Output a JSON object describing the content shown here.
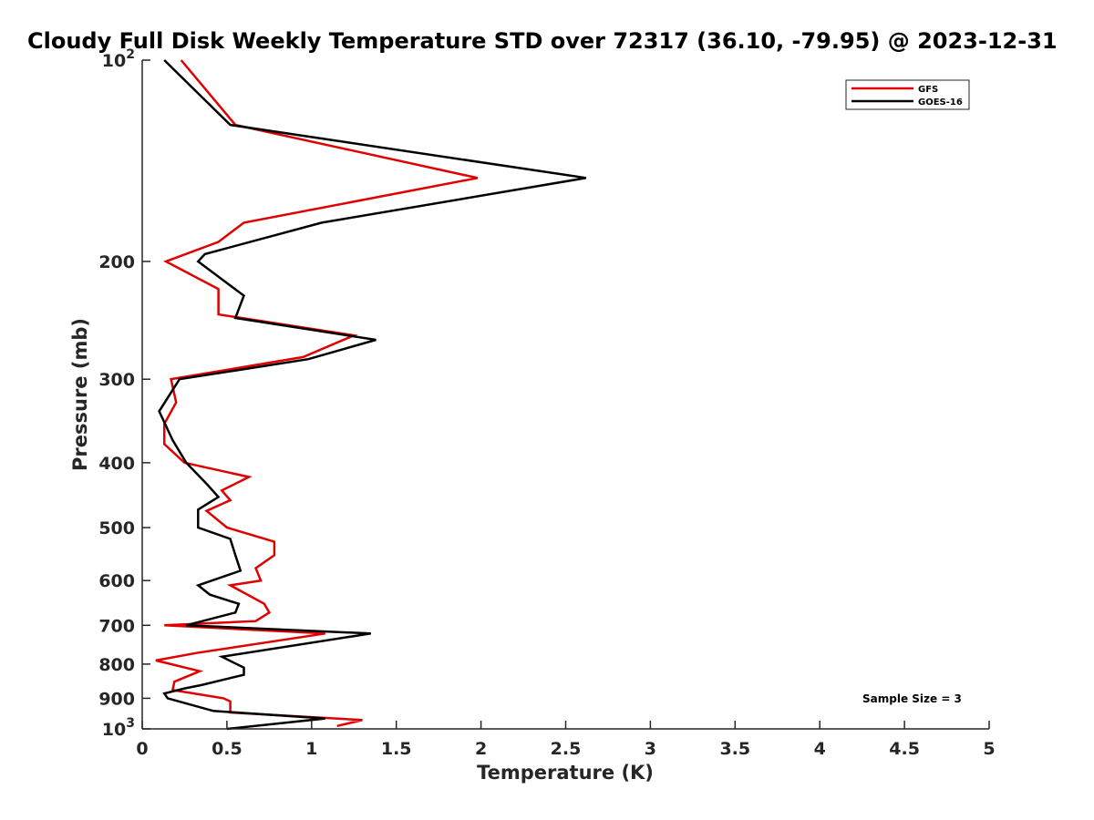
{
  "chart_data": {
    "type": "line",
    "title": "Cloudy Full Disk Weekly Temperature STD over 72317 (36.10, -79.95) @ 2023-12-31",
    "xlabel": "Temperature (K)",
    "ylabel": "Pressure (mb)",
    "xlim": [
      0,
      5
    ],
    "ylim": [
      100,
      1000
    ],
    "y_scale": "log",
    "y_reversed": true,
    "grid": false,
    "legend_position": "top-right",
    "x_ticks": [
      "0",
      "0.5",
      "1",
      "1.5",
      "2",
      "2.5",
      "3",
      "3.5",
      "4",
      "4.5",
      "5"
    ],
    "y_ticks": [
      {
        "value": 100,
        "base": "10",
        "exp": "2"
      },
      {
        "value": 200,
        "label": "200"
      },
      {
        "value": 300,
        "label": "300"
      },
      {
        "value": 400,
        "label": "400"
      },
      {
        "value": 500,
        "label": "500"
      },
      {
        "value": 600,
        "label": "600"
      },
      {
        "value": 700,
        "label": "700"
      },
      {
        "value": 800,
        "label": "800"
      },
      {
        "value": 900,
        "label": "900"
      },
      {
        "value": 1000,
        "base": "10",
        "exp": "3"
      }
    ],
    "annotation": "Sample Size = 3",
    "series": [
      {
        "name": "GFS",
        "color": "#e00000",
        "points": [
          [
            0.23,
            100
          ],
          [
            0.55,
            125
          ],
          [
            1.98,
            150
          ],
          [
            0.6,
            175
          ],
          [
            0.45,
            187
          ],
          [
            0.14,
            200
          ],
          [
            0.45,
            220
          ],
          [
            0.45,
            240
          ],
          [
            1.25,
            258
          ],
          [
            0.95,
            278
          ],
          [
            0.17,
            300
          ],
          [
            0.2,
            325
          ],
          [
            0.13,
            350
          ],
          [
            0.13,
            375
          ],
          [
            0.25,
            400
          ],
          [
            0.63,
            420
          ],
          [
            0.47,
            440
          ],
          [
            0.52,
            455
          ],
          [
            0.38,
            472
          ],
          [
            0.5,
            500
          ],
          [
            0.78,
            525
          ],
          [
            0.78,
            550
          ],
          [
            0.67,
            575
          ],
          [
            0.7,
            600
          ],
          [
            0.52,
            610
          ],
          [
            0.72,
            650
          ],
          [
            0.75,
            670
          ],
          [
            0.67,
            690
          ],
          [
            0.13,
            700
          ],
          [
            1.08,
            720
          ],
          [
            0.32,
            770
          ],
          [
            0.08,
            790
          ],
          [
            0.34,
            820
          ],
          [
            0.19,
            850
          ],
          [
            0.18,
            875
          ],
          [
            0.48,
            900
          ],
          [
            0.52,
            910
          ],
          [
            0.52,
            945
          ],
          [
            1.3,
            970
          ],
          [
            1.15,
            990
          ]
        ]
      },
      {
        "name": "GOES-16",
        "color": "#000000",
        "points": [
          [
            0.13,
            100
          ],
          [
            0.52,
            125
          ],
          [
            2.62,
            150
          ],
          [
            1.06,
            175
          ],
          [
            0.37,
            195
          ],
          [
            0.33,
            200
          ],
          [
            0.6,
            225
          ],
          [
            0.55,
            243
          ],
          [
            1.38,
            262
          ],
          [
            0.98,
            280
          ],
          [
            0.22,
            300
          ],
          [
            0.1,
            335
          ],
          [
            0.18,
            370
          ],
          [
            0.26,
            400
          ],
          [
            0.38,
            430
          ],
          [
            0.45,
            450
          ],
          [
            0.33,
            470
          ],
          [
            0.33,
            500
          ],
          [
            0.52,
            520
          ],
          [
            0.55,
            550
          ],
          [
            0.58,
            580
          ],
          [
            0.33,
            610
          ],
          [
            0.4,
            630
          ],
          [
            0.57,
            650
          ],
          [
            0.55,
            670
          ],
          [
            0.26,
            700
          ],
          [
            1.35,
            720
          ],
          [
            0.47,
            780
          ],
          [
            0.6,
            810
          ],
          [
            0.6,
            830
          ],
          [
            0.35,
            860
          ],
          [
            0.25,
            870
          ],
          [
            0.13,
            885
          ],
          [
            0.15,
            900
          ],
          [
            0.42,
            940
          ],
          [
            1.08,
            965
          ],
          [
            0.5,
            1000
          ]
        ]
      }
    ]
  }
}
